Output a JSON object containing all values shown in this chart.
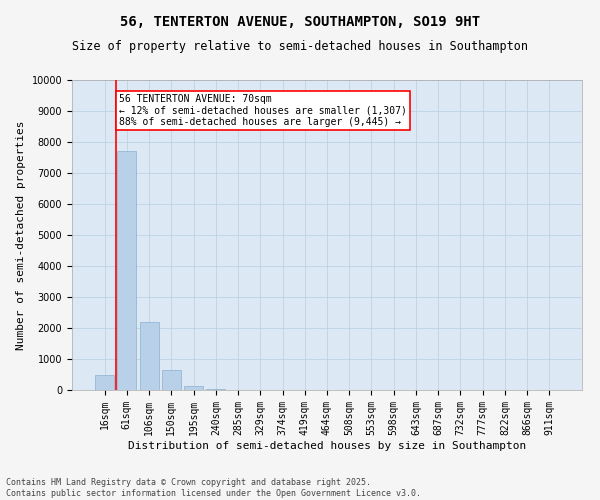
{
  "title_line1": "56, TENTERTON AVENUE, SOUTHAMPTON, SO19 9HT",
  "title_line2": "Size of property relative to semi-detached houses in Southampton",
  "xlabel": "Distribution of semi-detached houses by size in Southampton",
  "ylabel": "Number of semi-detached properties",
  "categories": [
    "16sqm",
    "61sqm",
    "106sqm",
    "150sqm",
    "195sqm",
    "240sqm",
    "285sqm",
    "329sqm",
    "374sqm",
    "419sqm",
    "464sqm",
    "508sqm",
    "553sqm",
    "598sqm",
    "643sqm",
    "687sqm",
    "732sqm",
    "777sqm",
    "822sqm",
    "866sqm",
    "911sqm"
  ],
  "values": [
    480,
    7700,
    2200,
    650,
    120,
    30,
    10,
    5,
    3,
    2,
    2,
    1,
    1,
    1,
    1,
    1,
    0,
    0,
    0,
    0,
    0
  ],
  "bar_color": "#b8d0e8",
  "bar_edge_color": "#8ab0d0",
  "bg_color": "#dce9f5",
  "grid_color": "#b8cfe0",
  "annotation_title": "56 TENTERTON AVENUE: 70sqm",
  "annotation_line1": "← 12% of semi-detached houses are smaller (1,307)",
  "annotation_line2": "88% of semi-detached houses are larger (9,445) →",
  "vline_position": 0.5,
  "ylim": [
    0,
    10000
  ],
  "yticks": [
    0,
    1000,
    2000,
    3000,
    4000,
    5000,
    6000,
    7000,
    8000,
    9000,
    10000
  ],
  "footer_line1": "Contains HM Land Registry data © Crown copyright and database right 2025.",
  "footer_line2": "Contains public sector information licensed under the Open Government Licence v3.0.",
  "title_fontsize": 10,
  "subtitle_fontsize": 8.5,
  "axis_label_fontsize": 8,
  "tick_fontsize": 7,
  "annotation_fontsize": 7,
  "footer_fontsize": 6
}
